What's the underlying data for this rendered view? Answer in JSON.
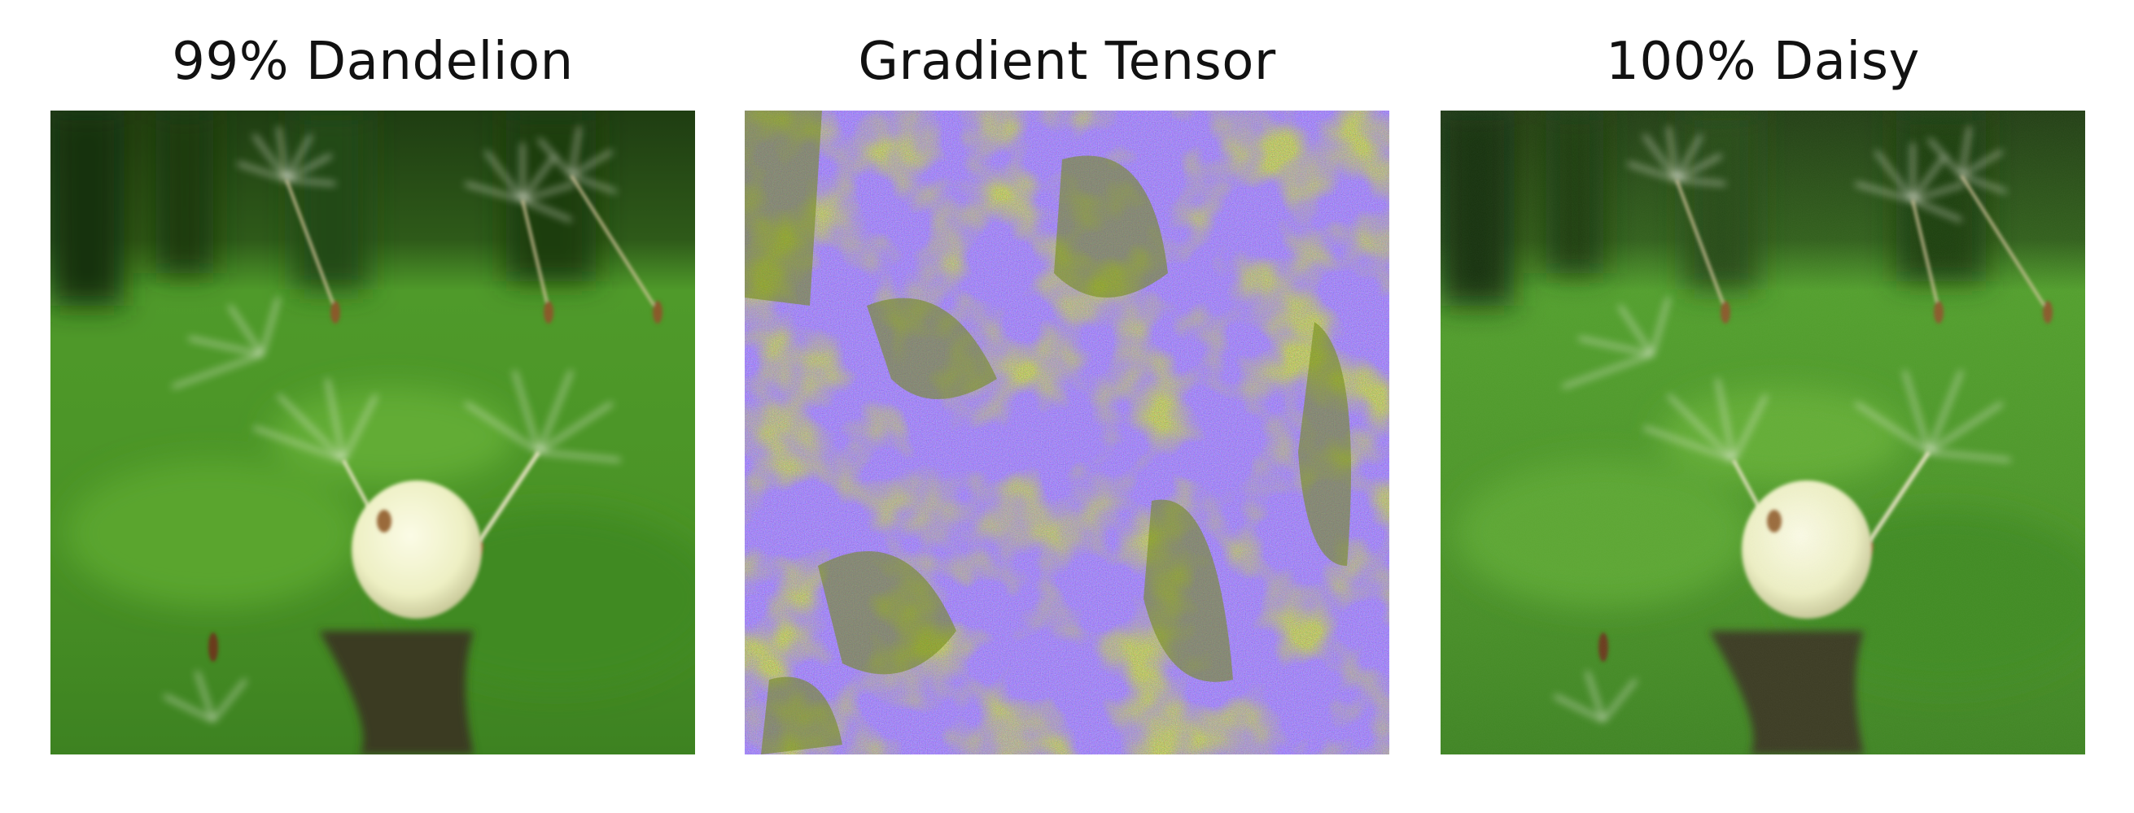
{
  "figure": {
    "panels": [
      {
        "title": "99% Dandelion",
        "image": "dandelion-photo"
      },
      {
        "title": "Gradient Tensor",
        "image": "gradient-noise-map"
      },
      {
        "title": "100% Daisy",
        "image": "dandelion-photo-perturbed"
      }
    ]
  },
  "colors": {
    "grass_dark": "#2f6a1c",
    "grass_mid": "#4f9a2a",
    "grass_light": "#7dbf3c",
    "seed_head": "#f2f3d0",
    "gradient_purple": "#4b1fa0",
    "gradient_blue": "#3236c8",
    "gradient_olive": "#6f8a10",
    "gradient_red": "#8a1a20"
  }
}
